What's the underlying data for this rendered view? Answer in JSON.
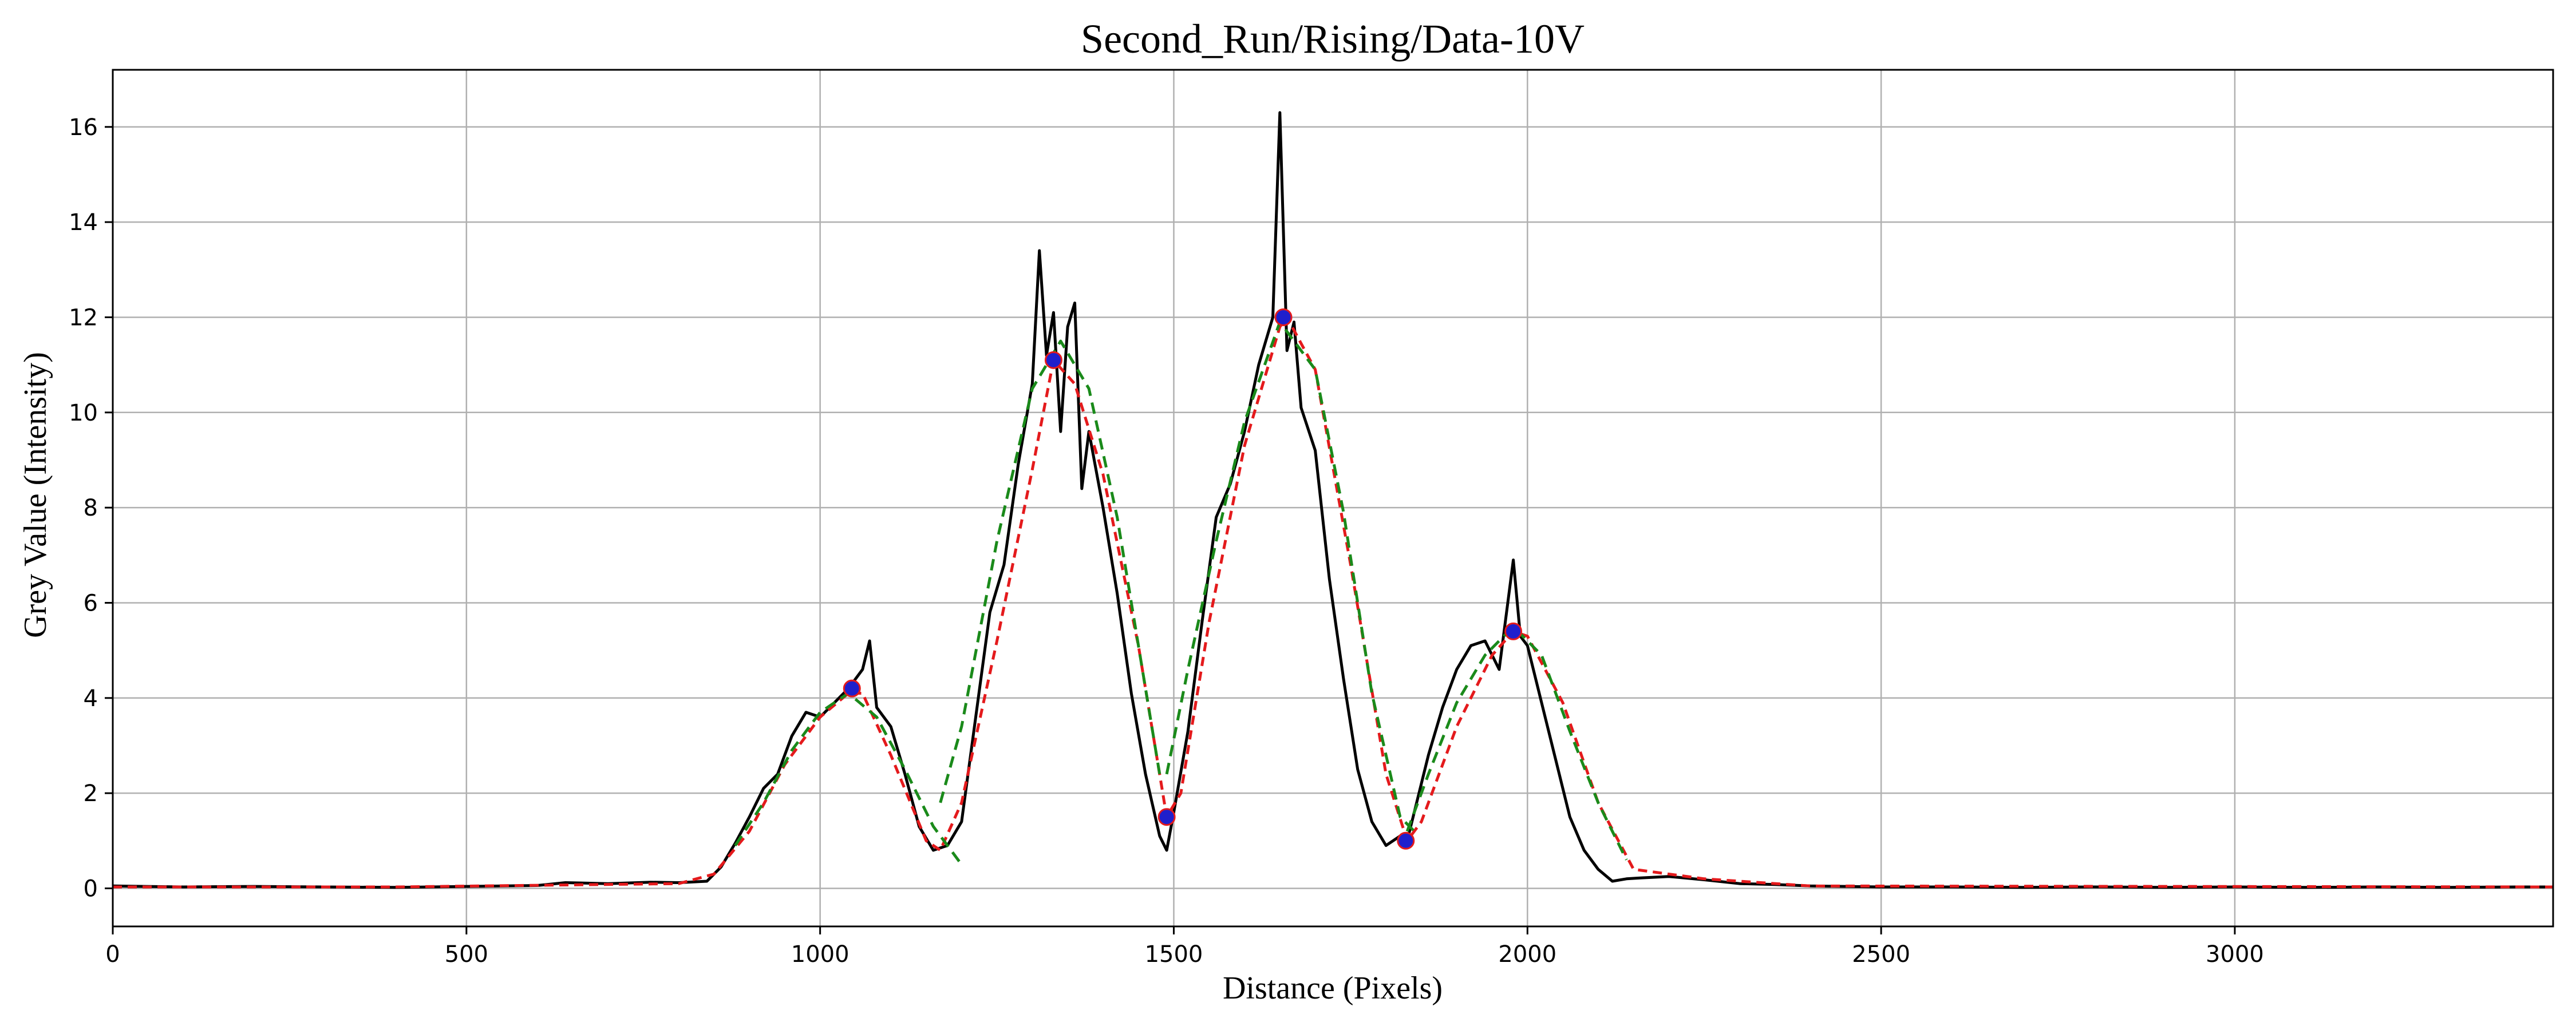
{
  "chart_data": {
    "type": "line",
    "title": "Second_Run/Rising/Data-10V",
    "xlabel": "Distance (Pixels)",
    "ylabel": "Grey Value (Intensity)",
    "xlim": [
      0,
      3450
    ],
    "ylim": [
      -0.8,
      17.2
    ],
    "grid": true,
    "x_ticks": [
      0,
      500,
      1000,
      1500,
      2000,
      2500,
      3000
    ],
    "y_ticks": [
      0,
      2,
      4,
      6,
      8,
      10,
      12,
      14,
      16
    ],
    "colors": {
      "raw": "#000000",
      "smoothed": "#e41a1c",
      "gaussian_fit": "#1a8a1a",
      "peak_markers": "#1f1fcc"
    },
    "series": [
      {
        "style": "solid-black",
        "x": [
          0,
          100,
          200,
          300,
          400,
          500,
          600,
          640,
          700,
          760,
          800,
          840,
          860,
          880,
          900,
          920,
          940,
          960,
          980,
          1000,
          1020,
          1040,
          1060,
          1070,
          1080,
          1100,
          1120,
          1140,
          1160,
          1180,
          1200,
          1220,
          1240,
          1260,
          1280,
          1300,
          1310,
          1320,
          1330,
          1340,
          1350,
          1360,
          1370,
          1380,
          1400,
          1420,
          1440,
          1460,
          1480,
          1490,
          1500,
          1520,
          1540,
          1560,
          1580,
          1600,
          1620,
          1640,
          1650,
          1660,
          1670,
          1680,
          1700,
          1720,
          1740,
          1760,
          1780,
          1800,
          1820,
          1830,
          1840,
          1860,
          1880,
          1900,
          1920,
          1940,
          1960,
          1980,
          1990,
          2000,
          2020,
          2040,
          2060,
          2080,
          2100,
          2120,
          2140,
          2160,
          2200,
          2250,
          2300,
          2350,
          2400,
          2450,
          2500,
          2600,
          2700,
          2800,
          2900,
          3000,
          3100,
          3200,
          3300,
          3400,
          3450
        ],
        "y": [
          0.05,
          0.03,
          0.04,
          0.03,
          0.02,
          0.04,
          0.06,
          0.12,
          0.1,
          0.13,
          0.12,
          0.15,
          0.45,
          0.95,
          1.5,
          2.1,
          2.4,
          3.2,
          3.7,
          3.6,
          3.9,
          4.2,
          4.6,
          5.2,
          3.8,
          3.4,
          2.4,
          1.3,
          0.8,
          0.9,
          1.4,
          3.6,
          5.8,
          6.8,
          8.9,
          10.6,
          13.4,
          11.2,
          12.1,
          9.6,
          11.8,
          12.3,
          8.4,
          9.6,
          8.0,
          6.2,
          4.1,
          2.4,
          1.1,
          0.8,
          1.6,
          3.3,
          5.6,
          7.8,
          8.5,
          9.6,
          11.0,
          12.0,
          16.3,
          11.3,
          11.9,
          10.1,
          9.2,
          6.5,
          4.4,
          2.5,
          1.4,
          0.9,
          1.1,
          1.0,
          1.6,
          2.8,
          3.8,
          4.6,
          5.1,
          5.2,
          4.6,
          6.9,
          5.3,
          5.1,
          3.9,
          2.7,
          1.5,
          0.8,
          0.4,
          0.15,
          0.2,
          0.22,
          0.25,
          0.18,
          0.1,
          0.08,
          0.05,
          0.04,
          0.03,
          0.03,
          0.02,
          0.03,
          0.02,
          0.03,
          0.02,
          0.03,
          0.02,
          0.03,
          0.03
        ]
      },
      {
        "style": "dashed-red",
        "x": [
          0,
          400,
          800,
          850,
          900,
          950,
          1000,
          1040,
          1060,
          1100,
          1150,
          1170,
          1200,
          1250,
          1300,
          1330,
          1360,
          1400,
          1450,
          1490,
          1510,
          1550,
          1600,
          1650,
          1660,
          1700,
          1750,
          1800,
          1830,
          1850,
          1900,
          1950,
          1980,
          2000,
          2050,
          2100,
          2150,
          2250,
          2400,
          3450
        ],
        "y": [
          0.03,
          0.03,
          0.1,
          0.3,
          1.2,
          2.6,
          3.6,
          4.1,
          4.1,
          2.8,
          1.0,
          0.8,
          1.8,
          5.2,
          8.8,
          11.1,
          10.6,
          8.7,
          5.1,
          1.5,
          2.0,
          5.6,
          9.3,
          11.8,
          12.0,
          10.9,
          6.8,
          2.4,
          1.0,
          1.4,
          3.4,
          4.9,
          5.4,
          5.3,
          3.9,
          1.8,
          0.4,
          0.2,
          0.05,
          0.03
        ]
      },
      {
        "style": "dashed-green",
        "segments": [
          {
            "x": [
              880,
              920,
              960,
              1000,
              1040,
              1080,
              1120,
              1160,
              1200
            ],
            "y": [
              0.9,
              1.8,
              2.9,
              3.7,
              4.1,
              3.6,
              2.5,
              1.3,
              0.5
            ]
          },
          {
            "x": [
              1170,
              1200,
              1250,
              1300,
              1340,
              1380,
              1420,
              1460,
              1480
            ],
            "y": [
              1.8,
              3.4,
              7.3,
              10.5,
              11.5,
              10.5,
              7.8,
              4.2,
              2.4
            ]
          },
          {
            "x": [
              1490,
              1520,
              1560,
              1600,
              1650,
              1700,
              1740,
              1780,
              1820,
              1840
            ],
            "y": [
              2.4,
              4.6,
              7.3,
              9.8,
              11.9,
              10.9,
              7.9,
              4.1,
              1.5,
              1.2
            ]
          },
          {
            "x": [
              1830,
              1860,
              1900,
              1940,
              1980,
              2020,
              2060,
              2100,
              2140
            ],
            "y": [
              1.2,
              2.4,
              3.9,
              4.9,
              5.5,
              4.9,
              3.3,
              1.8,
              0.6
            ]
          }
        ]
      }
    ],
    "peaks": {
      "x": [
        1045,
        1330,
        1490,
        1655,
        1828,
        1980
      ],
      "y": [
        4.2,
        11.1,
        1.5,
        12.0,
        1.0,
        5.4
      ]
    }
  }
}
